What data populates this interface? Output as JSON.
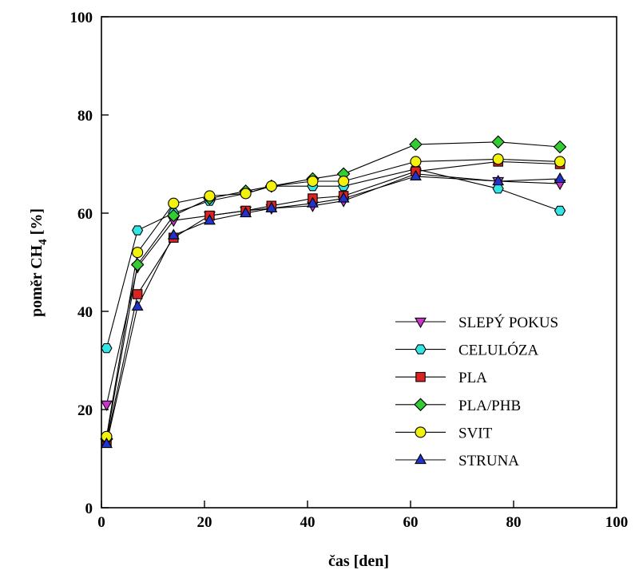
{
  "chart_data": {
    "type": "line",
    "xlabel": "čas [den]",
    "ylabel_main": "poměr CH",
    "ylabel_sub": "4",
    "ylabel_tail": " [%]",
    "xlim": [
      0,
      100
    ],
    "ylim": [
      0,
      100
    ],
    "xticks": [
      0,
      20,
      40,
      60,
      80,
      100
    ],
    "yticks": [
      0,
      20,
      40,
      60,
      80,
      100
    ],
    "tick_labels_x": [
      "0",
      "20",
      "40",
      "60",
      "80",
      "100"
    ],
    "tick_labels_y": [
      "0",
      "20",
      "40",
      "60",
      "80",
      "100"
    ],
    "grid": false,
    "legend_position": "lower-right",
    "series": [
      {
        "name": "SLEPÝ POKUS",
        "marker": "triangle-down",
        "color": "#cc33cc",
        "x": [
          1,
          7,
          14,
          21,
          28,
          33,
          41,
          47,
          61,
          77,
          89
        ],
        "y": [
          21,
          49,
          58.5,
          59.5,
          60.5,
          61,
          61.5,
          62.5,
          68,
          66.5,
          66
        ]
      },
      {
        "name": "CELULÓZA",
        "marker": "hexagon",
        "color": "#33e6e6",
        "x": [
          1,
          7,
          14,
          21,
          28,
          33,
          41,
          47,
          61,
          77,
          89
        ],
        "y": [
          32.5,
          56.5,
          60,
          62.5,
          64,
          65.5,
          65.5,
          65.5,
          69,
          65,
          60.5
        ]
      },
      {
        "name": "PLA",
        "marker": "square",
        "color": "#dd2222",
        "x": [
          1,
          7,
          14,
          21,
          28,
          33,
          41,
          47,
          61,
          77,
          89
        ],
        "y": [
          13.5,
          43.5,
          55,
          59.5,
          60.5,
          61.5,
          63,
          63.5,
          68.5,
          70.5,
          70
        ]
      },
      {
        "name": "PLA/PHB",
        "marker": "diamond",
        "color": "#33cc33",
        "x": [
          1,
          7,
          14,
          21,
          28,
          33,
          41,
          47,
          61,
          77,
          89
        ],
        "y": [
          14,
          49.5,
          59.5,
          63,
          64.5,
          65.5,
          67,
          68,
          74,
          74.5,
          73.5
        ]
      },
      {
        "name": "SVIT",
        "marker": "circle",
        "color": "#f2f20d",
        "x": [
          1,
          7,
          14,
          21,
          28,
          33,
          41,
          47,
          61,
          77,
          89
        ],
        "y": [
          14.5,
          52,
          62,
          63.5,
          64,
          65.5,
          66.5,
          66.5,
          70.5,
          71,
          70.5
        ]
      },
      {
        "name": "STRUNA",
        "marker": "triangle-up",
        "color": "#2233cc",
        "x": [
          1,
          7,
          14,
          21,
          28,
          33,
          41,
          47,
          61,
          77,
          89
        ],
        "y": [
          13,
          41,
          55.5,
          58.5,
          60,
          61,
          62,
          63,
          67.5,
          66.5,
          67
        ]
      }
    ]
  }
}
